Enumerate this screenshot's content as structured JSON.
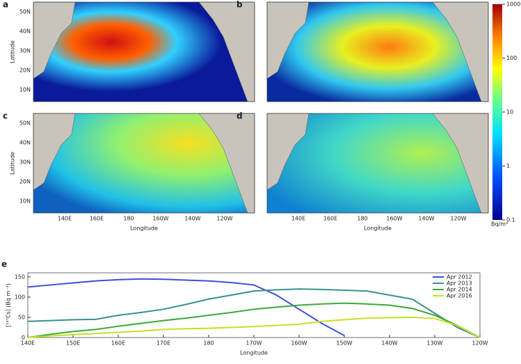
{
  "maps": {
    "panel_labels": [
      "a",
      "b",
      "c",
      "d"
    ],
    "ylabel": "Latitude",
    "xlabel": "Longitude",
    "lat_ticks": [
      "50N",
      "40N",
      "30N",
      "20N",
      "10N"
    ],
    "lon_ticks": [
      "140E",
      "160E",
      "180",
      "160W",
      "140W",
      "120W"
    ],
    "colorbar": {
      "ticks": [
        0.1,
        1,
        10,
        100,
        1000
      ],
      "log": true,
      "unit": "Bq/m³"
    }
  },
  "chart_data": {
    "type": "line",
    "panel_label": "e",
    "xlabel": "Longitude",
    "ylabel": "[¹³⁷Cs] (Bq m⁻³)",
    "x": [
      140,
      145,
      150,
      155,
      160,
      165,
      170,
      175,
      180,
      185,
      190,
      195,
      200,
      205,
      210,
      215,
      220,
      225,
      230,
      235,
      240
    ],
    "xlim": [
      140,
      240
    ],
    "xticks": [
      {
        "value": 140,
        "label": "140E"
      },
      {
        "value": 150,
        "label": "150E"
      },
      {
        "value": 160,
        "label": "160E"
      },
      {
        "value": 170,
        "label": "170E"
      },
      {
        "value": 180,
        "label": "180"
      },
      {
        "value": 190,
        "label": "170W"
      },
      {
        "value": 200,
        "label": "160W"
      },
      {
        "value": 210,
        "label": "150W"
      },
      {
        "value": 220,
        "label": "140W"
      },
      {
        "value": 230,
        "label": "130W"
      },
      {
        "value": 240,
        "label": "120W"
      }
    ],
    "ylim": [
      0,
      160
    ],
    "yticks": [
      0,
      50,
      100,
      150
    ],
    "legend": "upper right",
    "series": [
      {
        "name": "Apr 2012",
        "color": "#3b4fd8",
        "values": [
          125,
          130,
          135,
          140,
          143,
          145,
          144,
          142,
          140,
          136,
          130,
          105,
          70,
          35,
          5,
          null,
          null,
          null,
          null,
          null,
          null
        ]
      },
      {
        "name": "Apr 2013",
        "color": "#3a8f8f",
        "values": [
          40,
          42,
          44,
          45,
          55,
          62,
          70,
          82,
          95,
          105,
          115,
          118,
          120,
          119,
          117,
          115,
          105,
          95,
          60,
          25,
          0
        ]
      },
      {
        "name": "Apr 2014",
        "color": "#3aa83a",
        "values": [
          0,
          8,
          15,
          20,
          28,
          35,
          42,
          48,
          55,
          62,
          70,
          75,
          80,
          83,
          85,
          83,
          80,
          72,
          55,
          30,
          0
        ]
      },
      {
        "name": "Apr 2016",
        "color": "#c8e020",
        "values": [
          0,
          4,
          7,
          10,
          13,
          16,
          20,
          22,
          23,
          25,
          27,
          30,
          33,
          40,
          44,
          48,
          49,
          50,
          47,
          30,
          0
        ]
      }
    ]
  }
}
